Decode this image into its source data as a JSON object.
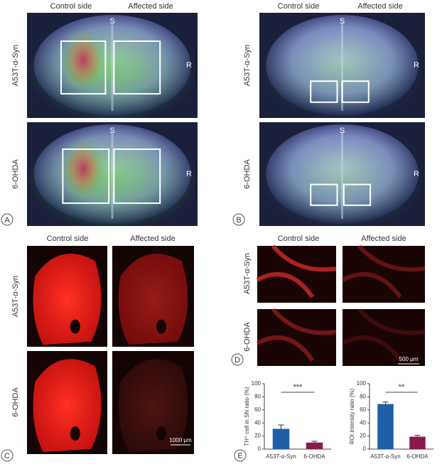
{
  "panels": {
    "A": {
      "label": "A",
      "columns": [
        "Control side",
        "Affected side"
      ],
      "rows": [
        "A53T-α-Syn",
        "6-OHDA"
      ],
      "markers": [
        "S",
        "R"
      ]
    },
    "B": {
      "label": "B",
      "columns": [
        "Control side",
        "Affected side"
      ],
      "rows": [
        "A53T-α-Syn",
        "6-OHDA"
      ],
      "markers": [
        "S",
        "R"
      ]
    },
    "C": {
      "label": "C",
      "columns": [
        "Control side",
        "Affected side"
      ],
      "rows": [
        "A53T-α-Syn",
        "6-OHDA"
      ],
      "scale_bar": "1000 μm"
    },
    "D": {
      "label": "D",
      "columns": [
        "Control side",
        "Affected side"
      ],
      "rows": [
        "A53T-α-Syn",
        "6-OHDA"
      ],
      "scale_bar": "500 μm"
    },
    "E": {
      "label": "E"
    }
  },
  "chart_data": [
    {
      "type": "bar",
      "y_label": "TH⁺ cell in SN ratio (%)",
      "categories": [
        "A53T-α-Syn",
        "6-OHDA"
      ],
      "values": [
        31,
        10
      ],
      "errors": [
        6,
        2
      ],
      "colors": [
        "#1f5fa8",
        "#8b1a4a"
      ],
      "ylim": [
        0,
        100
      ],
      "yticks": [
        0,
        20,
        40,
        60,
        80,
        100
      ],
      "annotation": "***"
    },
    {
      "type": "bar",
      "y_label": "ROI intensity ratio (%)",
      "categories": [
        "A53T-α-Syn",
        "6-OHDA"
      ],
      "values": [
        69,
        19
      ],
      "errors": [
        3,
        2
      ],
      "colors": [
        "#1f5fa8",
        "#8b1a4a"
      ],
      "ylim": [
        0,
        100
      ],
      "yticks": [
        0,
        20,
        40,
        60,
        80,
        100
      ],
      "annotation": "**"
    }
  ]
}
